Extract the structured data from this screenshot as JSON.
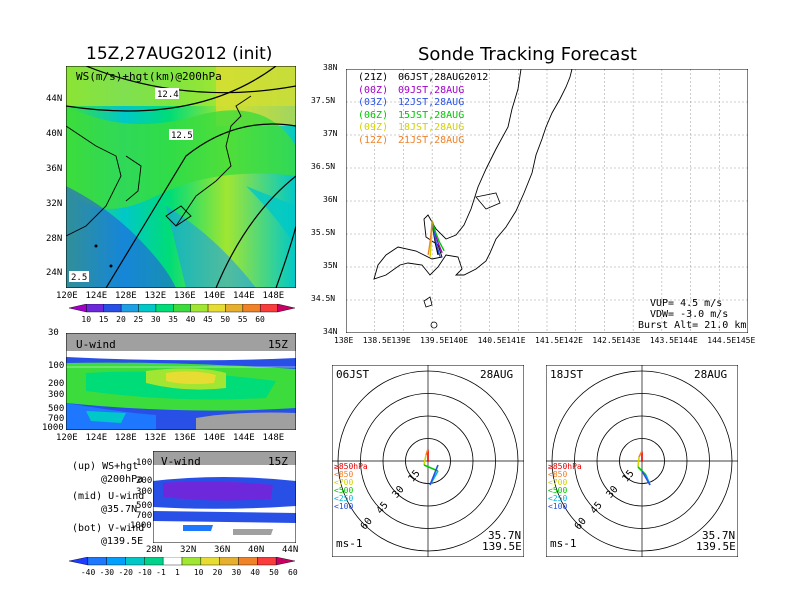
{
  "main_title": "Sonde Tracking Forecast",
  "map_panel": {
    "title": "15Z,27AUG2012 (init)",
    "subtitle": "WS(m/s)+hgt(km)@200hPa",
    "contour_labels": [
      "12.4",
      "12.5",
      "2.5"
    ],
    "lat_ticks": [
      "44N",
      "40N",
      "36N",
      "32N",
      "28N",
      "24N"
    ],
    "lon_ticks": [
      "120E",
      "124E",
      "128E",
      "132E",
      "136E",
      "140E",
      "144E",
      "148E"
    ],
    "colorbar_ticks": [
      "10",
      "15",
      "20",
      "25",
      "30",
      "35",
      "40",
      "45",
      "50",
      "55",
      "60"
    ],
    "colorbar_colors": [
      "#a000c8",
      "#6e28dc",
      "#2850e6",
      "#1ea0e6",
      "#00c8c8",
      "#00dc78",
      "#3cdc3c",
      "#a0e632",
      "#e6dc32",
      "#e6af2d",
      "#f08228",
      "#fa3c3c",
      "#c80064"
    ]
  },
  "u_wind_panel": {
    "title": "U-wind",
    "time": "15Z",
    "y_ticks": [
      "30",
      "100",
      "200",
      "300",
      "500",
      "700",
      "1000"
    ],
    "x_ticks": [
      "120E",
      "124E",
      "128E",
      "132E",
      "136E",
      "140E",
      "144E",
      "148E"
    ]
  },
  "v_wind_panel": {
    "title": "V-wind",
    "time": "15Z",
    "y_ticks": [
      "100",
      "200",
      "300",
      "500",
      "700",
      "1000"
    ],
    "x_ticks": [
      "28N",
      "32N",
      "36N",
      "40N",
      "44N"
    ],
    "colorbar_ticks": [
      "-40",
      "-30",
      "-20",
      "-10",
      "-1",
      "1",
      "10",
      "20",
      "30",
      "40",
      "50",
      "60"
    ],
    "colorbar_colors": [
      "#1e3cff",
      "#1e78ff",
      "#00a0ff",
      "#00c8c8",
      "#00d28c",
      "#ffffff",
      "#a0e632",
      "#e6dc32",
      "#e6af2d",
      "#f08228",
      "#fa3c3c",
      "#c80064"
    ]
  },
  "legend_notes": [
    {
      "line1": "(up) WS+hgt",
      "line2": "@200hPa"
    },
    {
      "line1": "(mid) U-wind",
      "line2": "@35.7N"
    },
    {
      "line1": "(bot) V-wind",
      "line2": "@139.5E"
    }
  ],
  "track_panel": {
    "lat_ticks": [
      "38N",
      "37.5N",
      "37N",
      "36.5N",
      "36N",
      "35.5N",
      "35N",
      "34.5N",
      "34N"
    ],
    "lon_ticks": [
      "138E",
      "138.5E",
      "139E",
      "139.5E",
      "140E",
      "140.5E",
      "141E",
      "141.5E",
      "142E",
      "142.5E",
      "143E",
      "143.5E",
      "144E",
      "144.5E",
      "145E"
    ],
    "launch_lat": 35.7,
    "launch_lon": 139.5,
    "legend": [
      {
        "utc": "(21Z)",
        "jst": "06JST,28AUG2012",
        "color": "#000000"
      },
      {
        "utc": "(00Z)",
        "jst": "09JST,28AUG",
        "color": "#a000c8"
      },
      {
        "utc": "(03Z)",
        "jst": "12JST,28AUG",
        "color": "#2850e6"
      },
      {
        "utc": "(06Z)",
        "jst": "15JST,28AUG",
        "color": "#00c800"
      },
      {
        "utc": "(09Z)",
        "jst": "18JST,28AUG",
        "color": "#d2d200"
      },
      {
        "utc": "(12Z)",
        "jst": "21JST,28AUG",
        "color": "#f08228"
      }
    ],
    "vup": "VUP= 4.5 m/s",
    "vdw": "VDW= -3.0 m/s",
    "burst": "Burst Alt= 21.0 km"
  },
  "hodographs": [
    {
      "time": "06JST",
      "date": "28AUG",
      "lat": "35.7N",
      "lon": "139.5E",
      "unit": "ms-1",
      "ring_labels": [
        "15",
        "30",
        "45",
        "60"
      ],
      "levels": [
        {
          "label": "≥850hPa",
          "color": "#e60000"
        },
        {
          "label": "<850",
          "color": "#f08228"
        },
        {
          "label": "<700",
          "color": "#d2d200"
        },
        {
          "label": "<500",
          "color": "#00c800"
        },
        {
          "label": "<250",
          "color": "#00b4dc"
        },
        {
          "label": "<100",
          "color": "#2850e6"
        }
      ]
    },
    {
      "time": "18JST",
      "date": "28AUG",
      "lat": "35.7N",
      "lon": "139.5E",
      "unit": "ms-1",
      "ring_labels": [
        "15",
        "30",
        "45",
        "60"
      ],
      "levels": [
        {
          "label": "≥850hPa",
          "color": "#e60000"
        },
        {
          "label": "<850",
          "color": "#f08228"
        },
        {
          "label": "<700",
          "color": "#d2d200"
        },
        {
          "label": "<500",
          "color": "#00c800"
        },
        {
          "label": "<250",
          "color": "#00b4dc"
        },
        {
          "label": "<100",
          "color": "#2850e6"
        }
      ]
    }
  ]
}
